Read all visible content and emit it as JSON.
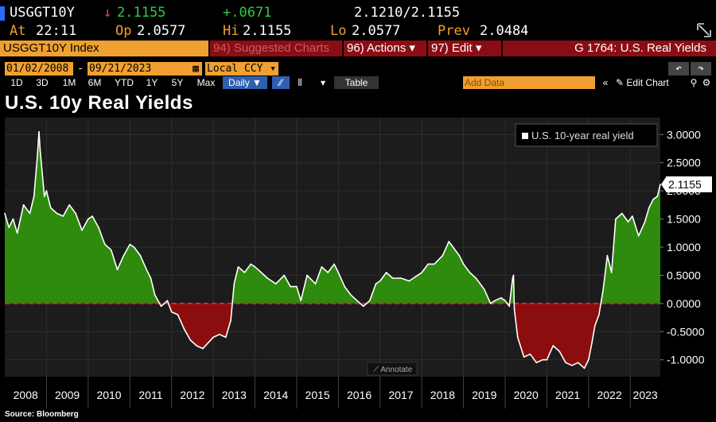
{
  "quote": {
    "ticker": "USGGT10Y",
    "arrow": "↓",
    "last": "2.1155",
    "change": "+.0671",
    "bid_ask": "2.1210/2.1155",
    "at_label": "At",
    "at_time": "22:11",
    "op_label": "Op",
    "op_value": "2.0577",
    "hi_label": "Hi",
    "hi_value": "2.1155",
    "lo_label": "Lo",
    "lo_value": "2.0577",
    "prev_label": "Prev",
    "prev_value": "2.0484"
  },
  "command_bar": {
    "security": "USGGT10Y Index",
    "suggested": "94) Suggested Charts",
    "actions": "96) Actions ▾",
    "edit": "97) Edit ▾",
    "function": "G 1764: U.S. Real Yields"
  },
  "date_bar": {
    "start": "01/02/2008",
    "end": "09/21/2023",
    "currency": "Local CCY"
  },
  "range_bar": {
    "ranges": [
      "1D",
      "3D",
      "1M",
      "6M",
      "YTD",
      "1Y",
      "5Y",
      "Max"
    ],
    "frequency": "Daily ▼",
    "table": "Table",
    "add_data_placeholder": "Add Data",
    "edit_chart": "Edit Chart"
  },
  "chart_data": {
    "type": "area",
    "title": "U.S. 10y Real Yields",
    "legend": "U.S. 10-year real yield",
    "legend_position": "top-right",
    "last_value_label": "2.1155",
    "ylim": [
      -1.3,
      3.3
    ],
    "yticks": [
      3.0,
      2.5,
      2.0,
      1.5,
      1.0,
      0.5,
      0.0,
      -0.5,
      -1.0
    ],
    "ytick_labels": [
      "3.0000",
      "2.5000",
      "2.0000",
      "1.5000",
      "1.0000",
      "0.5000",
      "0.0000",
      "-0.5000",
      "-1.0000"
    ],
    "xlim": [
      2008.0,
      2023.72
    ],
    "xtick_labels": [
      "2008",
      "2009",
      "2010",
      "2011",
      "2012",
      "2013",
      "2014",
      "2015",
      "2016",
      "2017",
      "2018",
      "2019",
      "2020",
      "2021",
      "2022",
      "2023"
    ],
    "reference_line": 0.0,
    "positive_color": "#2e8b0e",
    "negative_color": "#8b0d0d",
    "line_color": "#ffffff",
    "zero_line_color": "#e0203a",
    "grid": true,
    "x": [
      2008.0,
      2008.1,
      2008.2,
      2008.3,
      2008.45,
      2008.6,
      2008.7,
      2008.78,
      2008.82,
      2008.85,
      2008.9,
      2008.95,
      2009.0,
      2009.1,
      2009.25,
      2009.4,
      2009.55,
      2009.7,
      2009.85,
      2010.0,
      2010.1,
      2010.25,
      2010.4,
      2010.55,
      2010.7,
      2010.85,
      2011.0,
      2011.1,
      2011.25,
      2011.4,
      2011.5,
      2011.6,
      2011.75,
      2011.9,
      2012.0,
      2012.15,
      2012.3,
      2012.45,
      2012.6,
      2012.75,
      2012.85,
      2013.0,
      2013.15,
      2013.3,
      2013.42,
      2013.5,
      2013.6,
      2013.75,
      2013.9,
      2014.0,
      2014.15,
      2014.3,
      2014.5,
      2014.7,
      2014.85,
      2015.0,
      2015.1,
      2015.25,
      2015.45,
      2015.6,
      2015.75,
      2015.9,
      2016.0,
      2016.15,
      2016.3,
      2016.45,
      2016.6,
      2016.75,
      2016.9,
      2017.0,
      2017.15,
      2017.3,
      2017.5,
      2017.7,
      2017.9,
      2018.0,
      2018.15,
      2018.3,
      2018.5,
      2018.65,
      2018.8,
      2018.9,
      2019.0,
      2019.15,
      2019.3,
      2019.5,
      2019.65,
      2019.75,
      2019.9,
      2020.0,
      2020.1,
      2020.18,
      2020.2,
      2020.22,
      2020.3,
      2020.45,
      2020.6,
      2020.75,
      2020.9,
      2021.0,
      2021.15,
      2021.3,
      2021.45,
      2021.6,
      2021.75,
      2021.9,
      2022.0,
      2022.08,
      2022.15,
      2022.25,
      2022.35,
      2022.45,
      2022.55,
      2022.65,
      2022.8,
      2022.95,
      2023.05,
      2023.2,
      2023.35,
      2023.45,
      2023.55,
      2023.65,
      2023.72
    ],
    "values": [
      1.6,
      1.35,
      1.5,
      1.25,
      1.75,
      1.6,
      1.9,
      2.6,
      3.05,
      2.7,
      2.3,
      1.9,
      2.0,
      1.7,
      1.6,
      1.55,
      1.75,
      1.6,
      1.3,
      1.5,
      1.55,
      1.35,
      1.05,
      0.95,
      0.6,
      0.85,
      1.05,
      1.0,
      0.85,
      0.6,
      0.45,
      0.15,
      -0.05,
      0.05,
      -0.15,
      -0.2,
      -0.45,
      -0.65,
      -0.75,
      -0.8,
      -0.72,
      -0.6,
      -0.55,
      -0.6,
      -0.3,
      0.35,
      0.65,
      0.55,
      0.7,
      0.65,
      0.55,
      0.45,
      0.35,
      0.5,
      0.3,
      0.3,
      0.05,
      0.5,
      0.35,
      0.65,
      0.55,
      0.7,
      0.55,
      0.3,
      0.15,
      0.05,
      -0.05,
      0.05,
      0.35,
      0.4,
      0.55,
      0.45,
      0.45,
      0.4,
      0.5,
      0.55,
      0.7,
      0.7,
      0.85,
      1.1,
      0.95,
      0.85,
      0.7,
      0.55,
      0.45,
      0.25,
      0.0,
      0.05,
      0.1,
      0.05,
      -0.05,
      0.45,
      0.5,
      -0.1,
      -0.6,
      -0.95,
      -0.9,
      -1.05,
      -1.0,
      -1.0,
      -0.75,
      -0.85,
      -1.05,
      -1.1,
      -1.05,
      -1.15,
      -1.0,
      -0.7,
      -0.4,
      -0.2,
      0.25,
      0.85,
      0.55,
      1.5,
      1.6,
      1.45,
      1.55,
      1.2,
      1.45,
      1.7,
      1.85,
      1.9,
      2.1155
    ]
  }
}
